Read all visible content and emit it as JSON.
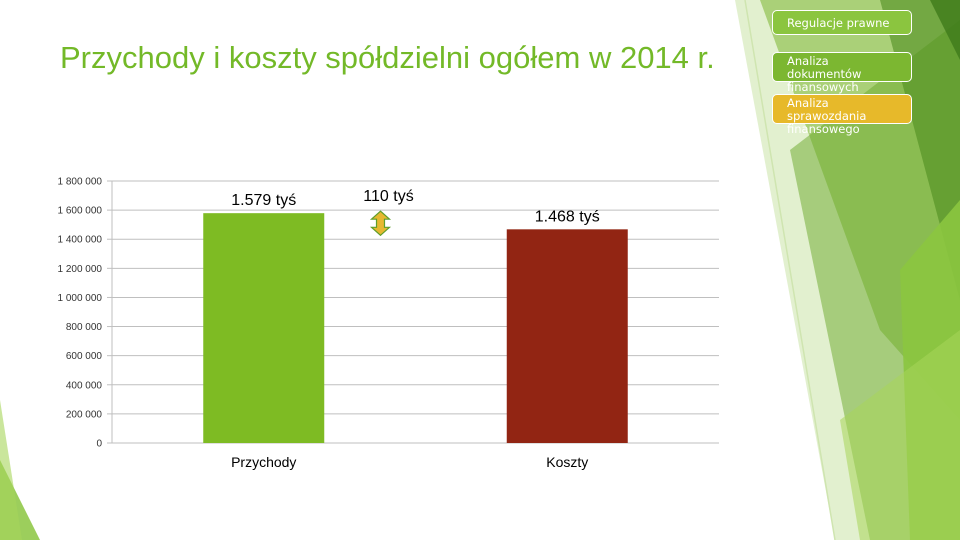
{
  "slide": {
    "title": "Przychody i koszty spółdzielni ogółem w 2014 r."
  },
  "nav": {
    "items": [
      {
        "label": "Regulacje prawne"
      },
      {
        "label": "Analiza dokumentów finansowych"
      },
      {
        "label": "Analiza sprawozdania finansowego"
      }
    ]
  },
  "colors": {
    "accent_green": "#73b928",
    "bar_income": "#7ebb23",
    "bar_costs": "#922513",
    "nav_highlight": "#e7b92a",
    "difference_arrow": "#e6b830"
  },
  "chart_data": {
    "type": "bar",
    "categories": [
      "Przychody",
      "Koszty"
    ],
    "values": [
      1579000,
      1468000
    ],
    "data_labels": [
      "1.579 tyś",
      "1.468 tyś"
    ],
    "difference_label": "110 tyś",
    "ylim": [
      0,
      1800000
    ],
    "yticks": [
      0,
      200000,
      400000,
      600000,
      800000,
      1000000,
      1200000,
      1400000,
      1600000,
      1800000
    ],
    "ytick_labels": [
      "0",
      "200 000",
      "400 000",
      "600 000",
      "800 000",
      "1 000 000",
      "1 200 000",
      "1 400 000",
      "1 600 000",
      "1 800 000"
    ],
    "grid": true,
    "legend": false
  }
}
